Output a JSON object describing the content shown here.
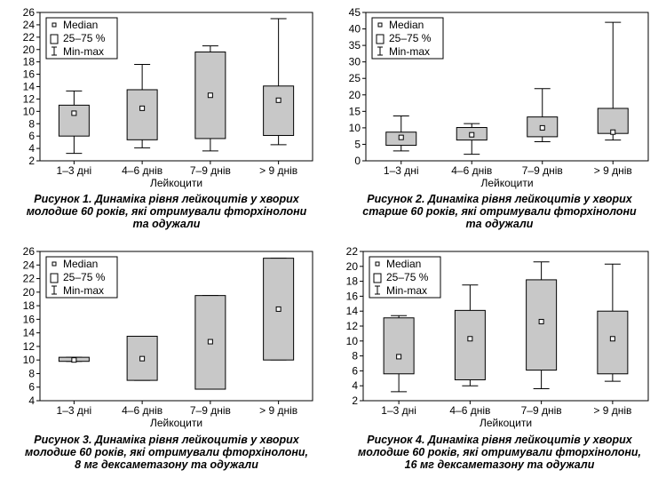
{
  "legend": {
    "median": "Median",
    "iqr": "25–75 %",
    "minmax": "Min-max"
  },
  "figures": [
    {
      "caption_lines": [
        "Рисунок 1. Динаміка рівня лейкоцитів у хворих",
        "молодше 60 років, які отримували фторхінолони",
        "та одужали"
      ]
    },
    {
      "caption_lines": [
        "Рисунок 2. Динаміка рівня лейкоцитів у хворих",
        "старше 60 років, які отримували фторхінолони",
        "та одужали"
      ]
    },
    {
      "caption_lines": [
        "Рисунок 3. Динаміка рівня лейкоцитів у хворих",
        "молодше 60 років, які отримували фторхінолони,",
        "8 мг дексаметазону та одужали"
      ]
    },
    {
      "caption_lines": [
        "Рисунок 4. Динаміка рівня лейкоцитів у хворих",
        "молодше 60 років, які отримували фторхінолони,",
        "16 мг дексаметазону та одужали"
      ]
    }
  ],
  "chart_data": [
    {
      "type": "box",
      "categories": [
        "1–3 дні",
        "4–6 днів",
        "7–9 днів",
        "> 9 днів"
      ],
      "xlabel": "Лейкоцити",
      "ylim": [
        2,
        26
      ],
      "yticks": [
        2,
        4,
        6,
        8,
        10,
        12,
        14,
        16,
        18,
        20,
        22,
        24,
        26
      ],
      "boxes": [
        {
          "median": 9.7,
          "q1": 6.0,
          "q3": 11.0,
          "min": 3.2,
          "max": 13.3
        },
        {
          "median": 10.5,
          "q1": 5.4,
          "q3": 13.5,
          "min": 4.1,
          "max": 17.6
        },
        {
          "median": 12.6,
          "q1": 5.6,
          "q3": 19.6,
          "min": 3.6,
          "max": 20.6
        },
        {
          "median": 11.8,
          "q1": 6.1,
          "q3": 14.1,
          "min": 4.6,
          "max": 25.0
        }
      ]
    },
    {
      "type": "box",
      "categories": [
        "1–3 дні",
        "4–6 днів",
        "7–9 днів",
        "> 9 днів"
      ],
      "xlabel": "Лейкоцити",
      "ylim": [
        0,
        45
      ],
      "yticks": [
        0,
        5,
        10,
        15,
        20,
        25,
        30,
        35,
        40,
        45
      ],
      "boxes": [
        {
          "median": 7.1,
          "q1": 4.7,
          "q3": 8.7,
          "min": 3.0,
          "max": 13.6
        },
        {
          "median": 7.9,
          "q1": 6.3,
          "q3": 10.1,
          "min": 2.0,
          "max": 11.3
        },
        {
          "median": 10.0,
          "q1": 7.3,
          "q3": 13.3,
          "min": 5.8,
          "max": 21.9
        },
        {
          "median": 8.7,
          "q1": 8.3,
          "q3": 15.9,
          "min": 6.3,
          "max": 42.0
        }
      ]
    },
    {
      "type": "box",
      "categories": [
        "1–3 дні",
        "4–6 днів",
        "7–9 днів",
        "> 9 днів"
      ],
      "xlabel": "Лейкоцити",
      "ylim": [
        4,
        26
      ],
      "yticks": [
        4,
        6,
        8,
        10,
        12,
        14,
        16,
        18,
        20,
        22,
        24,
        26
      ],
      "boxes": [
        {
          "median": 10.0,
          "q1": 9.8,
          "q3": 10.4,
          "min": 9.8,
          "max": 10.4
        },
        {
          "median": 10.2,
          "q1": 7.0,
          "q3": 13.5,
          "min": 7.0,
          "max": 13.5
        },
        {
          "median": 12.7,
          "q1": 5.7,
          "q3": 19.5,
          "min": 5.7,
          "max": 19.5
        },
        {
          "median": 17.5,
          "q1": 10.0,
          "q3": 25.0,
          "min": 10.0,
          "max": 25.0
        }
      ]
    },
    {
      "type": "box",
      "categories": [
        "1–3 дні",
        "4–6 днів",
        "7–9 днів",
        "> 9 днів"
      ],
      "xlabel": "Лейкоцити",
      "ylim": [
        2,
        22
      ],
      "yticks": [
        2,
        4,
        6,
        8,
        10,
        12,
        14,
        16,
        18,
        20,
        22
      ],
      "boxes": [
        {
          "median": 7.9,
          "q1": 5.6,
          "q3": 13.1,
          "min": 3.2,
          "max": 13.4
        },
        {
          "median": 10.3,
          "q1": 4.8,
          "q3": 14.1,
          "min": 4.0,
          "max": 17.5
        },
        {
          "median": 12.6,
          "q1": 6.1,
          "q3": 18.2,
          "min": 3.6,
          "max": 20.6
        },
        {
          "median": 10.3,
          "q1": 5.6,
          "q3": 14.0,
          "min": 4.6,
          "max": 20.3
        }
      ]
    }
  ]
}
